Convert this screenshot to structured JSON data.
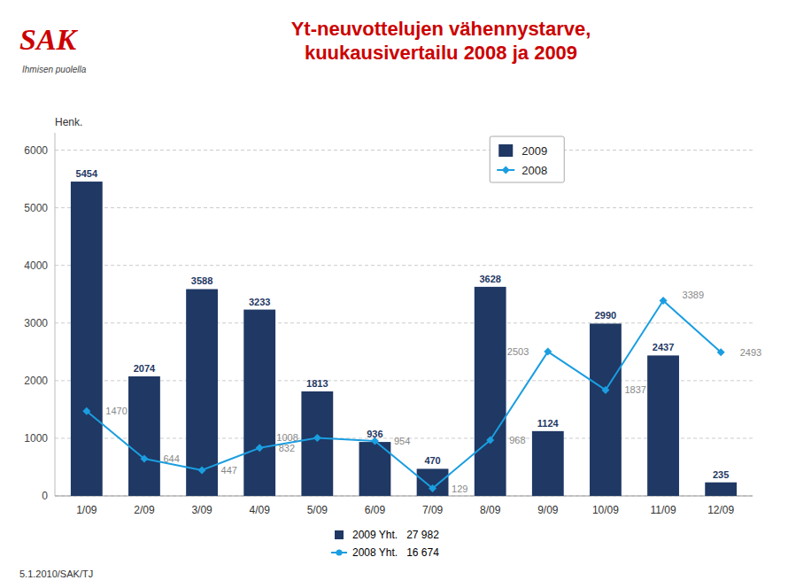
{
  "chart_data": {
    "type": "bar",
    "title": "Yt-neuvottelujen vähennystarve,\nkuukausivertailu 2008 ja 2009",
    "y_label": "Henk.",
    "categories": [
      "1/09",
      "2/09",
      "3/09",
      "4/09",
      "5/09",
      "6/09",
      "7/09",
      "8/09",
      "9/09",
      "10/09",
      "11/09",
      "12/09"
    ],
    "series": [
      {
        "name": "2009",
        "type": "bar",
        "color": "#1f3864",
        "values": [
          5454,
          2074,
          3588,
          3233,
          1813,
          936,
          470,
          3628,
          1124,
          2990,
          2437,
          235
        ]
      },
      {
        "name": "2008",
        "type": "line",
        "color": "#1a9ee0",
        "marker": "diamond",
        "values": [
          1470,
          644,
          447,
          832,
          1008,
          954,
          129,
          968,
          2503,
          1837,
          3389,
          2493
        ]
      }
    ],
    "ylim": [
      0,
      6300
    ],
    "yticks": [
      0,
      1000,
      2000,
      3000,
      4000,
      5000,
      6000
    ],
    "grid": true,
    "legend": "top",
    "data_labels": true,
    "annotations": [
      "SAK",
      "Ihmisen puolella",
      "2009 Yht.   27 982",
      "2008 Yht.   16 674",
      "5.1.2010/SAK/TJ"
    ]
  }
}
